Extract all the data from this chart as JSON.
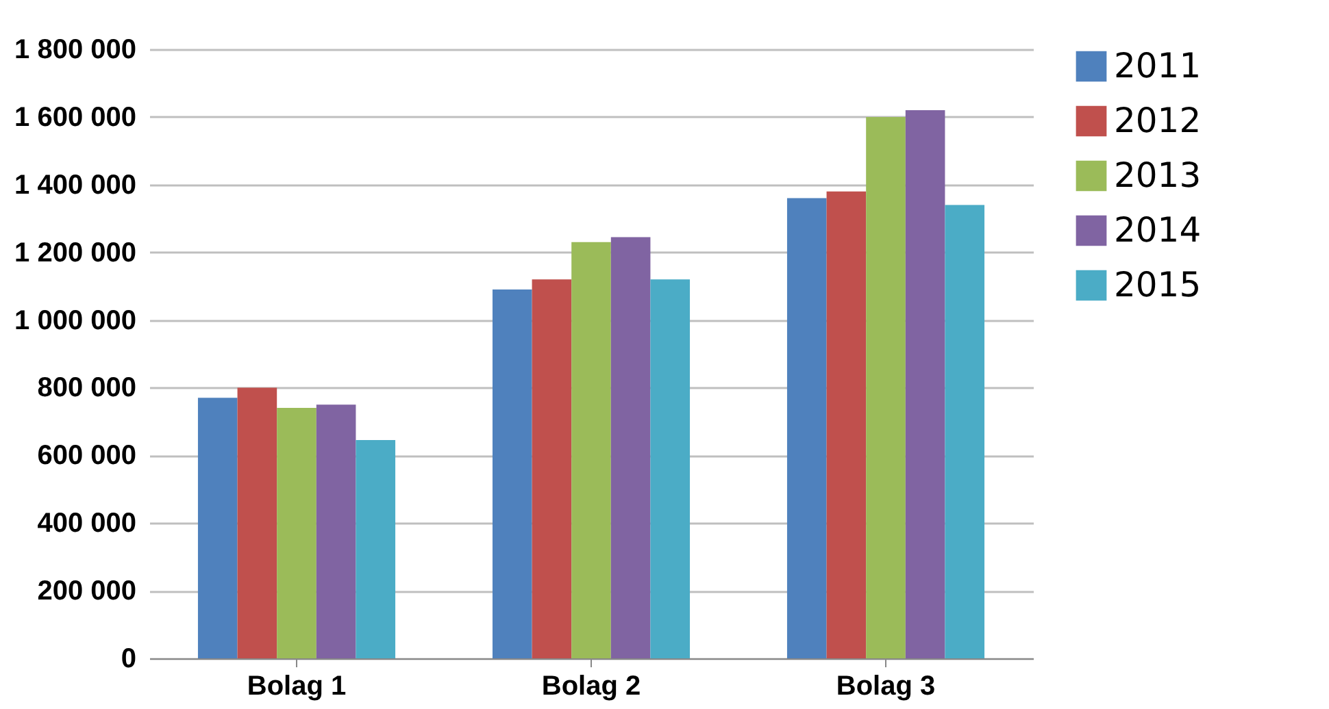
{
  "chart_data": {
    "type": "bar",
    "categories": [
      "Bolag 1",
      "Bolag 2",
      "Bolag 3"
    ],
    "series": [
      {
        "name": "2011",
        "color": "#4f81bd",
        "values": [
          770000,
          1090000,
          1360000
        ]
      },
      {
        "name": "2012",
        "color": "#c0504d",
        "values": [
          800000,
          1120000,
          1380000
        ]
      },
      {
        "name": "2013",
        "color": "#9bbb59",
        "values": [
          740000,
          1230000,
          1600000
        ]
      },
      {
        "name": "2014",
        "color": "#8064a2",
        "values": [
          750000,
          1245000,
          1620000
        ]
      },
      {
        "name": "2015",
        "color": "#4bacc6",
        "values": [
          645000,
          1120000,
          1340000
        ]
      }
    ],
    "ylim": [
      0,
      1800000
    ],
    "yticks": [
      {
        "value": 0,
        "label": "0"
      },
      {
        "value": 200000,
        "label": "200 000"
      },
      {
        "value": 400000,
        "label": "400 000"
      },
      {
        "value": 600000,
        "label": "600 000"
      },
      {
        "value": 800000,
        "label": "800 000"
      },
      {
        "value": 1000000,
        "label": "1 000 000"
      },
      {
        "value": 1200000,
        "label": "1 200 000"
      },
      {
        "value": 1400000,
        "label": "1 400 000"
      },
      {
        "value": 1600000,
        "label": "1 600 000"
      },
      {
        "value": 1800000,
        "label": "1 800 000"
      }
    ],
    "grid": "y",
    "legend": "right"
  }
}
